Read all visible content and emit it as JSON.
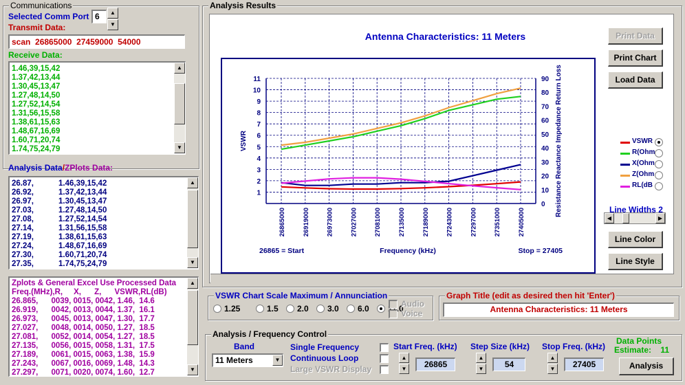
{
  "communications": {
    "title": "Communications",
    "comm_port_label": "Selected Comm Port",
    "comm_port_value": "6",
    "transmit_label": "Transmit Data:",
    "transmit_value": "scan  26865000  27459000  54000",
    "receive_label": "Receive Data:",
    "receive_lines": [
      "1.46,39,15,42",
      "1.37,42,13,44",
      "1.30,45,13,47",
      "1.27,48,14,50",
      "1.27,52,14,54",
      "1.31,56,15,58",
      "1.38,61,15,63",
      "1.48,67,16,69",
      "1.60,71,20,74",
      "1.74,75,24,79"
    ]
  },
  "analysis_data": {
    "label_a": "Analysis Data",
    "label_sep": "/",
    "label_b": "ZPlots Data:",
    "rows": [
      [
        "26.87,",
        "1.46,39,15,42"
      ],
      [
        "26.92,",
        "1.37,42,13,44"
      ],
      [
        "26.97,",
        "1.30,45,13,47"
      ],
      [
        "27.03,",
        "1.27,48,14,50"
      ],
      [
        "27.08,",
        "1.27,52,14,54"
      ],
      [
        "27.14,",
        "1.31,56,15,58"
      ],
      [
        "27.19,",
        "1.38,61,15,63"
      ],
      [
        "27.24,",
        "1.48,67,16,69"
      ],
      [
        "27.30,",
        "1.60,71,20,74"
      ],
      [
        "27.35,",
        "1.74,75,24,79"
      ]
    ]
  },
  "zplots": {
    "title": "Zplots & General Excel Use Processed Data",
    "header": "Freq.(MHz),R,     X,      Z,      VSWR,RL(dB)",
    "rows": [
      "26.865,      0039, 0015, 0042, 1.46,  14.6",
      "26.919,      0042, 0013, 0044, 1.37,  16.1",
      "26.973,      0045, 0013, 0047, 1.30,  17.7",
      "27.027,      0048, 0014, 0050, 1.27,  18.5",
      "27.081,      0052, 0014, 0054, 1.27,  18.5",
      "27.135,      0056, 0015, 0058, 1.31,  17.5",
      "27.189,      0061, 0015, 0063, 1.38,  15.9",
      "27.243,      0067, 0016, 0069, 1.48,  14.3",
      "27.297,      0071, 0020, 0074, 1.60,  12.7"
    ]
  },
  "analysis_results": {
    "title": "Analysis Results",
    "print_data": "Print Data",
    "print_chart": "Print Chart",
    "load_data": "Load  Data",
    "line_color": "Line Color",
    "line_style": "Line Style",
    "line_widths_label": "Line Widths",
    "line_widths_value": "2",
    "legend_radio_selected": 0
  },
  "chart_data": {
    "type": "line",
    "title": "Antenna Characteristics: 11 Meters",
    "xlabel": "Frequency (kHz)",
    "ylabel": "VSWR",
    "y2label": "Resistance Reactance Impedance Return Loss",
    "start_label": "26865 = Start",
    "stop_label": "Stop = 27405",
    "categories": [
      "26865000",
      "26919000",
      "26973000",
      "27027000",
      "27081000",
      "27135000",
      "27189000",
      "27243000",
      "27297000",
      "27351000",
      "27405000"
    ],
    "x_tick_labels": [
      "26865000",
      "26919000",
      "26973000",
      "27027000",
      "27081000",
      "27135000",
      "27189000",
      "27243000",
      "27297000",
      "27351000",
      "27405000"
    ],
    "ylim": [
      0,
      11
    ],
    "y_ticks": [
      1,
      2,
      3,
      4,
      5,
      6,
      7,
      8,
      9,
      10,
      11
    ],
    "y2lim": [
      0,
      90
    ],
    "y2_ticks": [
      0,
      10,
      20,
      30,
      40,
      50,
      60,
      70,
      80,
      90
    ],
    "grid": true,
    "series": [
      {
        "name": "VSWR",
        "axis": "left",
        "color": "#e00000",
        "values": [
          1.46,
          1.37,
          1.3,
          1.27,
          1.27,
          1.31,
          1.38,
          1.48,
          1.6,
          1.74,
          1.9
        ]
      },
      {
        "name": "R(Ohm",
        "axis": "right",
        "color": "#20d020",
        "values": [
          39,
          42,
          45,
          48,
          52,
          56,
          61,
          67,
          71,
          75,
          77
        ]
      },
      {
        "name": "X(Ohm",
        "axis": "right",
        "color": "#000090",
        "values": [
          15,
          13,
          13,
          14,
          14,
          15,
          15,
          16,
          20,
          24,
          28
        ]
      },
      {
        "name": "Z(Ohm",
        "axis": "right",
        "color": "#f0a040",
        "values": [
          42,
          44,
          47,
          50,
          54,
          58,
          63,
          69,
          74,
          79,
          83
        ]
      },
      {
        "name": "RL(dB",
        "axis": "right",
        "color": "#e020e0",
        "values": [
          14.6,
          16.1,
          17.7,
          18.5,
          18.5,
          17.5,
          15.9,
          14.3,
          12.7,
          11.3,
          10.0
        ]
      }
    ]
  },
  "vswr_scale": {
    "title": "VSWR Chart Scale Maximum / Annunciation",
    "options": [
      "1.25",
      "1.5",
      "2.0",
      "3.0",
      "6.0",
      "11.0"
    ],
    "selected": 5,
    "audio": "Audio",
    "voice": "Voice"
  },
  "graph_title": {
    "label": "Graph Title (edit as desired then hit 'Enter')",
    "value": "Antenna Characteristics: 11 Meters"
  },
  "freq_control": {
    "title": "Analysis / Frequency Control",
    "band_label": "Band",
    "band_value": "11 Meters",
    "single_freq": "Single Frequency",
    "continuous": "Continuous Loop",
    "large_vswr": "Large VSWR Display",
    "start_label": "Start Freq. (kHz)",
    "start_value": "26865",
    "step_label": "Step Size (kHz)",
    "step_value": "54",
    "stop_label": "Stop Freq. (kHz)",
    "stop_value": "27405",
    "data_points_label": "Data Points",
    "estimate_label": "Estimate:",
    "estimate_value": "11",
    "analysis_button": "Analysis"
  }
}
